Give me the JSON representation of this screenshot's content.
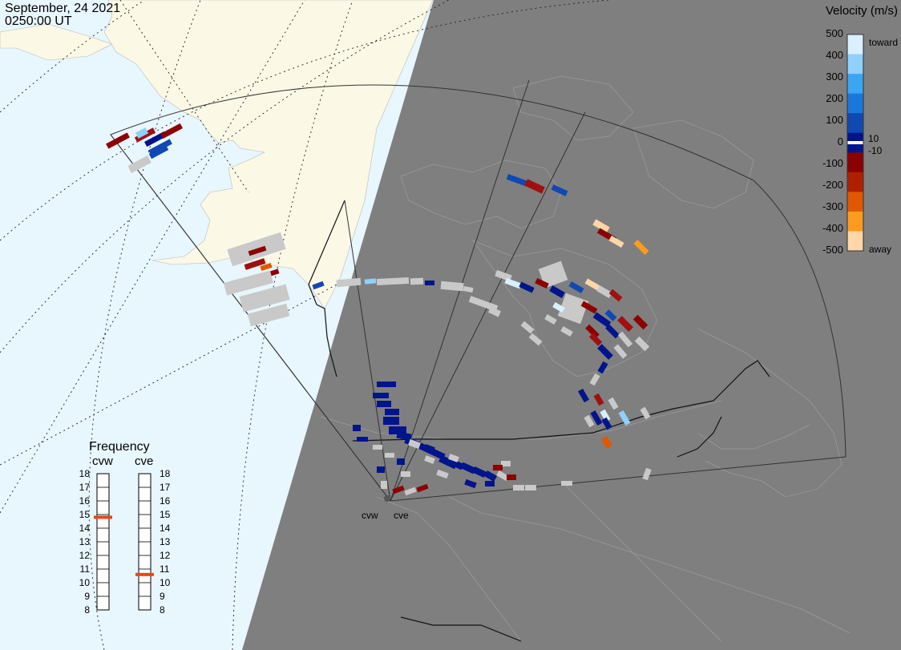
{
  "header": {
    "date": "September, 24 2021",
    "time": "0250:00 UT"
  },
  "colorbar": {
    "title": "Velocity (m/s)",
    "ticks": [
      "500",
      "400",
      "300",
      "200",
      "100",
      "0",
      "-100",
      "-200",
      "-300",
      "-400",
      "-500"
    ],
    "inner_ticks": [
      "10",
      "-10"
    ],
    "toward_label": "toward",
    "away_label": "away",
    "colors": [
      "#d8f0ff",
      "#8fd0ff",
      "#3aa6f2",
      "#1a78dc",
      "#1048b4",
      "#00148c",
      "#8c0000",
      "#b02000",
      "#e05800",
      "#ff9a20",
      "#ffd6a8"
    ],
    "ground_scatter_color": "#c9c9c9"
  },
  "frequency_panel": {
    "title": "Frequency",
    "radars": [
      {
        "name": "cvw",
        "frequency_mhz": 14.8
      },
      {
        "name": "cve",
        "frequency_mhz": 10.6
      }
    ],
    "scale_min": 8,
    "scale_max": 18,
    "scale_labels": [
      "18",
      "17",
      "16",
      "15",
      "14",
      "13",
      "12",
      "11",
      "10",
      "9",
      "8"
    ],
    "marker_color": "#e04a18"
  },
  "map": {
    "night_color": "#7f7f7f",
    "day_ocean_color": "#e8f6fd",
    "day_land_color": "#fbf8e6",
    "radar_sites": [
      {
        "name": "cvw"
      },
      {
        "name": "cve"
      }
    ]
  }
}
